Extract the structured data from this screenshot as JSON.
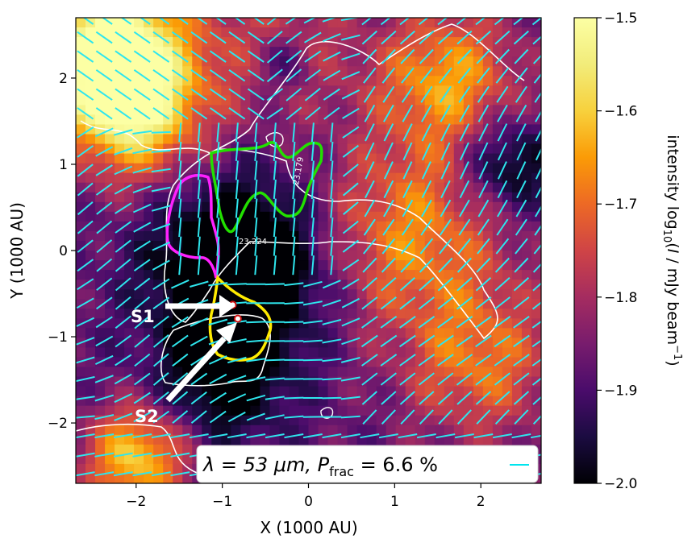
{
  "chart_data": {
    "type": "heatmap",
    "title": "",
    "xlabel": "X (1000 AU)",
    "ylabel": "Y (1000 AU)",
    "xlim": [
      -2.7,
      2.7
    ],
    "ylim": [
      -2.7,
      2.7
    ],
    "xticks": [
      -2,
      -1,
      0,
      1,
      2
    ],
    "yticks": [
      -2,
      -1,
      0,
      1,
      2
    ],
    "xtick_labels": [
      "−2",
      "−1",
      "0",
      "1",
      "2"
    ],
    "ytick_labels": [
      "−2",
      "−1",
      "0",
      "1",
      "2"
    ],
    "colormap": "inferno",
    "colorbar": {
      "label_main": "intensity log",
      "label_sub": "10",
      "label_rest": "(",
      "label_italic": "I",
      "label_tail": " / mJy beam",
      "label_sup": "−1",
      "label_close": ")",
      "range": [
        -2.0,
        -1.5
      ],
      "ticks": [
        -2.0,
        -1.9,
        -1.8,
        -1.7,
        -1.6,
        -1.5
      ],
      "tick_labels": [
        "−2.0",
        "−1.9",
        "−1.8",
        "−1.7",
        "−1.6",
        "−1.5"
      ]
    },
    "legend": {
      "placement": "lower-right",
      "lambda_label": "λ = 53 μm, P",
      "frac_sub": "frac",
      "frac_value": " = 6.6 %",
      "marker_color": "#00e5ee"
    },
    "contour_labels": [
      "23.224",
      "23.179"
    ],
    "sources": [
      {
        "name": "S1",
        "x": -0.88,
        "y": -0.63
      },
      {
        "name": "S2",
        "x": -0.82,
        "y": -0.79
      }
    ],
    "vector_color": "#2ee6ee",
    "contour_colors": {
      "white": "#ffffff",
      "green": "#22e000",
      "magenta": "#ff20ff",
      "yellow": "#ffea00"
    }
  }
}
